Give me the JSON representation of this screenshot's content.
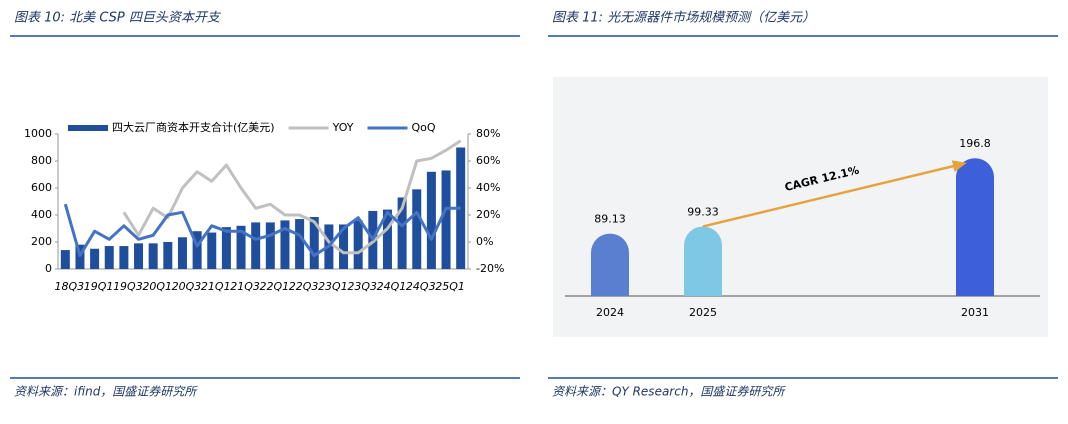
{
  "chart_data": [
    {
      "type": "bar",
      "title": "图表 10:  北美 CSP 四巨头资本开支",
      "source": "资料来源：ifind，国盛证券研究所",
      "categories": [
        "18Q3",
        null,
        "19Q1",
        null,
        "19Q3",
        null,
        "20Q1",
        null,
        "20Q3",
        null,
        "21Q1",
        null,
        "21Q3",
        null,
        "22Q1",
        null,
        "22Q3",
        null,
        "23Q1",
        null,
        "23Q3",
        null,
        "24Q1",
        null,
        "24Q3",
        null,
        "25Q1",
        null
      ],
      "series": [
        {
          "name": "四大云厂商资本开支合计(亿美元)",
          "color": "#1f4e9c",
          "values": [
            140,
            180,
            150,
            170,
            170,
            190,
            190,
            200,
            235,
            280,
            270,
            310,
            320,
            345,
            345,
            360,
            370,
            385,
            330,
            330,
            360,
            430,
            440,
            530,
            590,
            720,
            730,
            900
          ]
        },
        {
          "name": "YOY",
          "color": "#c0c0c0",
          "axis": "y2",
          "values": [
            null,
            null,
            null,
            null,
            22,
            5,
            25,
            18,
            40,
            52,
            45,
            57,
            40,
            25,
            28,
            20,
            20,
            15,
            0,
            -8,
            -8,
            0,
            10,
            25,
            60,
            62,
            68,
            75
          ]
        },
        {
          "name": "QoQ",
          "color": "#4472c4",
          "axis": "y2",
          "values": [
            28,
            -10,
            8,
            2,
            12,
            2,
            5,
            20,
            22,
            -3,
            12,
            8,
            8,
            2,
            5,
            10,
            5,
            -10,
            -3,
            10,
            18,
            2,
            22,
            12,
            22,
            2,
            25,
            25
          ]
        }
      ],
      "ylim": [
        0,
        1000
      ],
      "yticks": [
        0,
        200,
        400,
        600,
        800,
        1000
      ],
      "y2lim": [
        -20,
        80
      ],
      "y2ticks": [
        {
          "value": -20,
          "label": "-20%"
        },
        {
          "value": 0,
          "label": "0%"
        },
        {
          "value": 20,
          "label": "20%"
        },
        {
          "value": 40,
          "label": "40%"
        },
        {
          "value": 60,
          "label": "60%"
        },
        {
          "value": 80,
          "label": "80%"
        }
      ]
    },
    {
      "type": "bar",
      "title": "图表 11:  光无源器件市场规模预测（亿美元）",
      "source": "资料来源：QY Research，国盛证券研究所",
      "categories": [
        "2024",
        "2025",
        "2031"
      ],
      "values": [
        89.13,
        99.33,
        196.8
      ],
      "colors": [
        "#5b7fd0",
        "#7ec8e6",
        "#3d5fd9"
      ],
      "annotation": "CAGR 12.1%"
    }
  ]
}
